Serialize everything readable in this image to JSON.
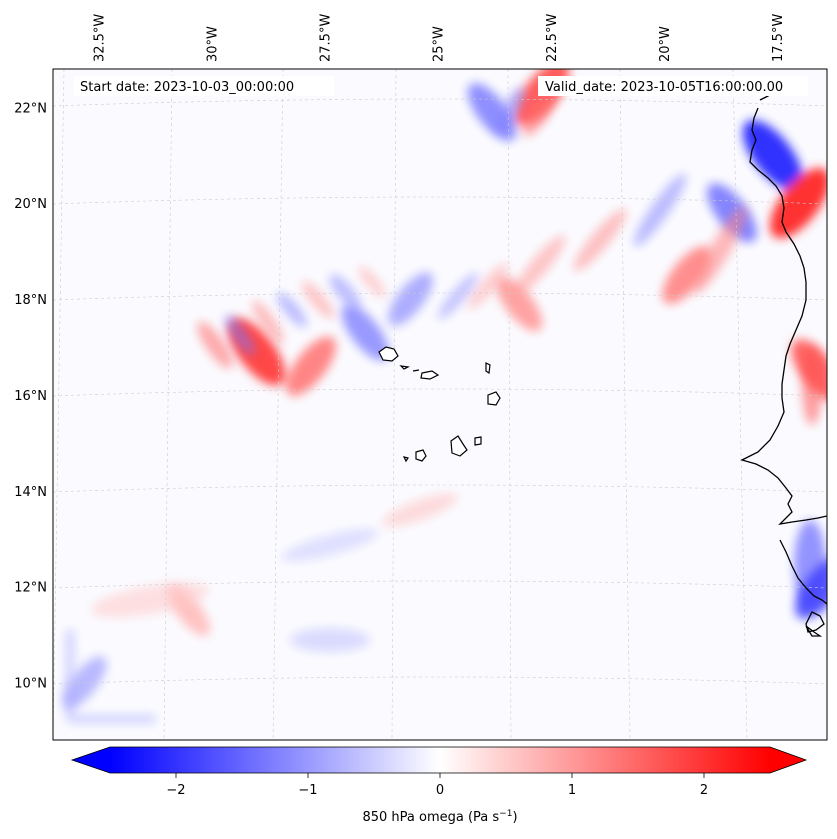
{
  "chart_data": {
    "type": "heatmap",
    "title": "850 hPa omega",
    "start_date": "Start date: 2023-10-03_00:00:00",
    "valid_date": "Valid_date: 2023-10-05T16:00:00.00",
    "lon_labels": [
      "32.5°W",
      "30°W",
      "27.5°W",
      "25°W",
      "22.5°W",
      "20°W",
      "17.5°W"
    ],
    "lon_values": [
      -32.5,
      -30,
      -27.5,
      -25,
      -22.5,
      -20,
      -17.5
    ],
    "lat_labels": [
      "22°N",
      "20°N",
      "18°N",
      "16°N",
      "14°N",
      "12°N",
      "10°N"
    ],
    "lat_values": [
      22,
      20,
      18,
      16,
      14,
      12,
      10
    ],
    "lon_range": [
      -33.5,
      -16.4
    ],
    "lat_range": [
      8.8,
      22.8
    ],
    "colorbar": {
      "label_prefix": "850 hPa omega (Pa s",
      "label_exp": "−1",
      "label_suffix": ")",
      "range": [
        -2.5,
        2.5
      ],
      "ticks": [
        -2,
        -1,
        0,
        1,
        2
      ],
      "tick_labels": [
        "−2",
        "−1",
        "0",
        "1",
        "2"
      ],
      "colormap": "bwr",
      "min_color": "#0000ff",
      "mid_color": "#ffffff",
      "max_color": "#ff0000"
    },
    "features": [
      {
        "name": "negative-band",
        "lon": -17.6,
        "lat": 21.0,
        "value": -2.0
      },
      {
        "name": "positive-band",
        "lon": -17.0,
        "lat": 20.0,
        "value": 2.0
      },
      {
        "name": "positive-band",
        "lon": -29.0,
        "lat": 16.9,
        "value": 1.8
      },
      {
        "name": "positive-band",
        "lon": -27.8,
        "lat": 16.6,
        "value": 1.2
      },
      {
        "name": "negative-band",
        "lon": -26.6,
        "lat": 17.3,
        "value": -1.0
      },
      {
        "name": "negative-band",
        "lon": -25.6,
        "lat": 18.0,
        "value": -0.8
      },
      {
        "name": "positive-band",
        "lon": -23.2,
        "lat": 17.9,
        "value": 0.9
      },
      {
        "name": "positive-band",
        "lon": -19.5,
        "lat": 18.5,
        "value": 1.1
      },
      {
        "name": "negative-band",
        "lon": -18.5,
        "lat": 19.8,
        "value": -1.2
      },
      {
        "name": "negative-band",
        "lon": -16.5,
        "lat": 12.0,
        "value": -1.6
      },
      {
        "name": "positive-band",
        "lon": -16.6,
        "lat": 16.5,
        "value": 1.5
      },
      {
        "name": "positive-band",
        "lon": -22.7,
        "lat": 22.3,
        "value": 1.6
      },
      {
        "name": "negative-band",
        "lon": -23.8,
        "lat": 21.9,
        "value": -1.1
      },
      {
        "name": "negative-band",
        "lon": -32.8,
        "lat": 10.0,
        "value": -0.7
      },
      {
        "name": "positive-band",
        "lon": -30.5,
        "lat": 11.5,
        "value": 0.6
      }
    ]
  },
  "colors": {
    "frame": "#000000",
    "grid": "#cccccc",
    "coast": "#000000"
  }
}
